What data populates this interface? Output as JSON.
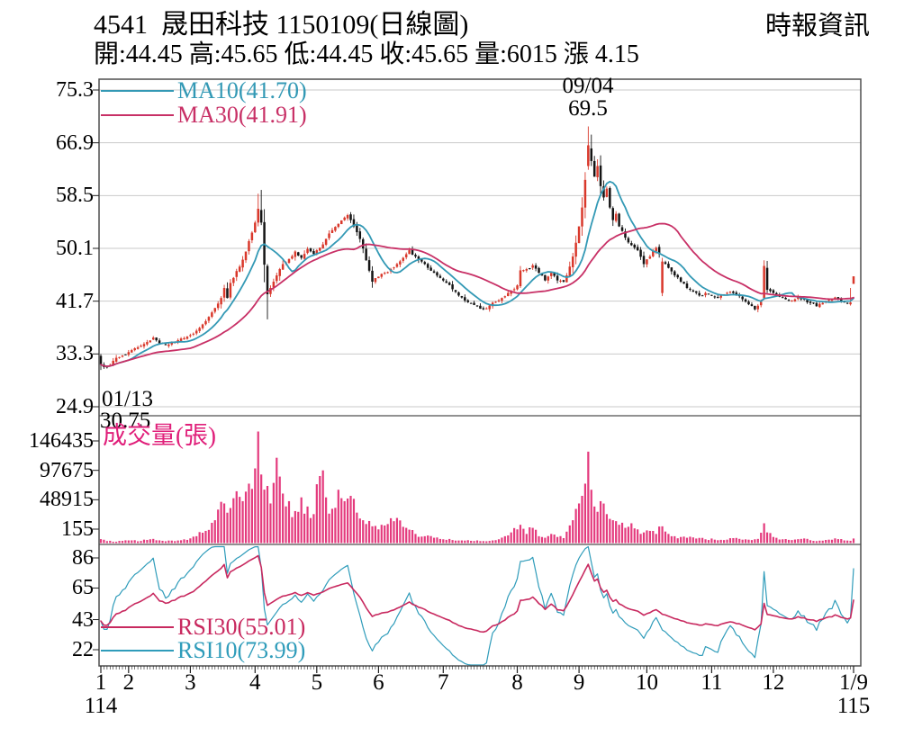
{
  "header": {
    "title": "4541  晟田科技 1150109(日線圖)",
    "source": "時報資訊",
    "quote_line": "開:44.45 高:45.65 低:44.45 收:45.65 量:6015 漲 4.15"
  },
  "colors": {
    "up_candle": "#d9382b",
    "down_candle": "#141414",
    "ma10": "#3399b5",
    "ma30": "#c83066",
    "volume_bar": "#e43a7d",
    "volume_label": "#e01f7a",
    "rsi10": "#2f9cba",
    "rsi30": "#c8295f",
    "grid": "#c9c9c9",
    "frame": "#4f4f4f",
    "axis": "#222222",
    "text": "#000000"
  },
  "chart_data": {
    "type": "candlestick",
    "title": "4541 晟田科技 1150109 日線圖",
    "price_panel": {
      "yticks": [
        "75.3",
        "66.9",
        "58.5",
        "50.1",
        "41.7",
        "33.3",
        "24.9"
      ],
      "ylim": [
        23.5,
        77.2
      ],
      "ma10": {
        "label": "MA10(41.70)",
        "period": 10,
        "last": 41.7
      },
      "ma30": {
        "label": "MA30(41.91)",
        "period": 30,
        "last": 41.91
      },
      "high_annotation": {
        "date": "09/04",
        "value": "69.5",
        "day": 158
      },
      "low_annotation": {
        "date": "01/13",
        "value": "30.75",
        "day": 0
      },
      "close_keypoints": [
        [
          0,
          31.6
        ],
        [
          2,
          31.2
        ],
        [
          4,
          32.2
        ],
        [
          6,
          32.8
        ],
        [
          8,
          33.2
        ],
        [
          9,
          33.6
        ],
        [
          11,
          34.2
        ],
        [
          13,
          34.6
        ],
        [
          15,
          35.2
        ],
        [
          17,
          35.9
        ],
        [
          19,
          35.0
        ],
        [
          21,
          34.7
        ],
        [
          23,
          35.1
        ],
        [
          25,
          35.5
        ],
        [
          27,
          35.8
        ],
        [
          29,
          36.3
        ],
        [
          31,
          37.0
        ],
        [
          33,
          38.0
        ],
        [
          35,
          39.2
        ],
        [
          37,
          40.6
        ],
        [
          39,
          42.2
        ],
        [
          40,
          43.8
        ],
        [
          41,
          42.2
        ],
        [
          42,
          44.6
        ],
        [
          43,
          45.4
        ],
        [
          45,
          47.2
        ],
        [
          47,
          49.6
        ],
        [
          49,
          52.6
        ],
        [
          50,
          54.2
        ],
        [
          51,
          56.4
        ],
        [
          52,
          54.2
        ],
        [
          53,
          47.5
        ],
        [
          54,
          42.8
        ],
        [
          55,
          43.8
        ],
        [
          56,
          44.8
        ],
        [
          57,
          45.8
        ],
        [
          58,
          46.8
        ],
        [
          59,
          47.6
        ],
        [
          61,
          48.4
        ],
        [
          63,
          49.6
        ],
        [
          65,
          48.6
        ],
        [
          67,
          50.0
        ],
        [
          69,
          49.2
        ],
        [
          71,
          50.2
        ],
        [
          73,
          51.6
        ],
        [
          75,
          53.0
        ],
        [
          77,
          54.0
        ],
        [
          79,
          55.0
        ],
        [
          80,
          55.4
        ],
        [
          81,
          54.6
        ],
        [
          82,
          53.6
        ],
        [
          84,
          51.6
        ],
        [
          86,
          48.2
        ],
        [
          88,
          44.8
        ],
        [
          90,
          45.6
        ],
        [
          92,
          46.2
        ],
        [
          94,
          46.8
        ],
        [
          96,
          47.6
        ],
        [
          98,
          48.6
        ],
        [
          100,
          49.8
        ],
        [
          102,
          48.8
        ],
        [
          104,
          48.0
        ],
        [
          106,
          47.0
        ],
        [
          108,
          46.2
        ],
        [
          110,
          45.4
        ],
        [
          112,
          44.6
        ],
        [
          114,
          43.6
        ],
        [
          116,
          42.6
        ],
        [
          118,
          41.8
        ],
        [
          120,
          41.4
        ],
        [
          122,
          40.9
        ],
        [
          124,
          40.4
        ],
        [
          126,
          41.0
        ],
        [
          128,
          41.6
        ],
        [
          130,
          42.2
        ],
        [
          132,
          43.0
        ],
        [
          134,
          43.6
        ],
        [
          135,
          44.2
        ],
        [
          136,
          46.6
        ],
        [
          138,
          46.8
        ],
        [
          140,
          47.4
        ],
        [
          142,
          46.2
        ],
        [
          144,
          45.0
        ],
        [
          146,
          46.2
        ],
        [
          148,
          45.0
        ],
        [
          150,
          44.8
        ],
        [
          151,
          45.8
        ],
        [
          152,
          47.2
        ],
        [
          153,
          48.8
        ],
        [
          154,
          51.0
        ],
        [
          155,
          53.6
        ],
        [
          156,
          56.6
        ],
        [
          157,
          61.0
        ],
        [
          158,
          66.5
        ],
        [
          159,
          64.0
        ],
        [
          160,
          61.5
        ],
        [
          161,
          63.2
        ],
        [
          162,
          60.0
        ],
        [
          163,
          58.2
        ],
        [
          164,
          59.6
        ],
        [
          165,
          56.6
        ],
        [
          166,
          54.6
        ],
        [
          167,
          55.6
        ],
        [
          168,
          53.6
        ],
        [
          170,
          51.8
        ],
        [
          172,
          50.6
        ],
        [
          174,
          49.8
        ],
        [
          176,
          47.6
        ],
        [
          178,
          48.8
        ],
        [
          180,
          50.2
        ],
        [
          181,
          49.2
        ],
        [
          182,
          48.0
        ],
        [
          184,
          47.0
        ],
        [
          186,
          45.8
        ],
        [
          188,
          44.8
        ],
        [
          190,
          43.8
        ],
        [
          192,
          43.2
        ],
        [
          194,
          42.6
        ],
        [
          196,
          43.0
        ],
        [
          198,
          42.6
        ],
        [
          200,
          42.2
        ],
        [
          202,
          42.8
        ],
        [
          204,
          43.2
        ],
        [
          206,
          42.6
        ],
        [
          208,
          42.0
        ],
        [
          210,
          41.2
        ],
        [
          212,
          40.4
        ],
        [
          214,
          41.6
        ],
        [
          215,
          47.3
        ],
        [
          216,
          43.5
        ],
        [
          218,
          43.0
        ],
        [
          220,
          42.4
        ],
        [
          222,
          42.0
        ],
        [
          224,
          41.8
        ],
        [
          226,
          42.4
        ],
        [
          228,
          42.0
        ],
        [
          230,
          41.4
        ],
        [
          232,
          40.9
        ],
        [
          234,
          41.4
        ],
        [
          236,
          41.9
        ],
        [
          238,
          42.3
        ],
        [
          240,
          41.7
        ],
        [
          242,
          41.3
        ],
        [
          243,
          41.5
        ],
        [
          244,
          45.65
        ]
      ],
      "override_days": [
        {
          "day": 0,
          "open": 33.0,
          "high": 33.3,
          "low": 30.75,
          "close": 31.6
        },
        {
          "day": 51,
          "open": 54.2,
          "high": 58.8,
          "low": 53.6,
          "close": 56.4
        },
        {
          "day": 52,
          "open": 56.2,
          "high": 59.4,
          "low": 53.8,
          "close": 54.2
        },
        {
          "day": 54,
          "open": 47.3,
          "high": 47.6,
          "low": 38.8,
          "close": 42.8
        },
        {
          "day": 158,
          "open": 63.2,
          "high": 69.5,
          "low": 62.6,
          "close": 66.5
        },
        {
          "day": 159,
          "open": 66.0,
          "high": 68.2,
          "low": 63.2,
          "close": 64.0
        },
        {
          "day": 182,
          "open": 43.0,
          "high": 48.6,
          "low": 42.5,
          "close": 48.0
        },
        {
          "day": 215,
          "open": 42.2,
          "high": 48.2,
          "low": 41.9,
          "close": 47.3
        },
        {
          "day": 216,
          "open": 47.0,
          "high": 48.1,
          "low": 43.0,
          "close": 43.5
        },
        {
          "day": 243,
          "open": 41.2,
          "high": 43.8,
          "low": 41.0,
          "close": 41.5
        },
        {
          "day": 244,
          "open": 44.45,
          "high": 45.65,
          "low": 44.45,
          "close": 45.65
        }
      ]
    },
    "volume_panel": {
      "label": "成交量(張)",
      "yticks": [
        "146435",
        "97675",
        "48915",
        "155"
      ],
      "last_volume": 6015,
      "volume_keypoints": [
        [
          0,
          5200
        ],
        [
          2,
          2600
        ],
        [
          5,
          1800
        ],
        [
          9,
          3500
        ],
        [
          13,
          2800
        ],
        [
          17,
          5500
        ],
        [
          20,
          3000
        ],
        [
          24,
          2600
        ],
        [
          28,
          4200
        ],
        [
          31,
          9000
        ],
        [
          34,
          16000
        ],
        [
          37,
          30000
        ],
        [
          40,
          52000
        ],
        [
          42,
          46000
        ],
        [
          44,
          68000
        ],
        [
          46,
          55000
        ],
        [
          48,
          78000
        ],
        [
          50,
          98000
        ],
        [
          51,
          146435
        ],
        [
          52,
          90000
        ],
        [
          54,
          75000
        ],
        [
          55,
          52000
        ],
        [
          57,
          112000
        ],
        [
          59,
          65000
        ],
        [
          61,
          55000
        ],
        [
          63,
          42000
        ],
        [
          65,
          60000
        ],
        [
          67,
          48000
        ],
        [
          69,
          38000
        ],
        [
          71,
          88000
        ],
        [
          73,
          60000
        ],
        [
          75,
          45000
        ],
        [
          77,
          70000
        ],
        [
          79,
          55000
        ],
        [
          81,
          62000
        ],
        [
          83,
          40000
        ],
        [
          85,
          30000
        ],
        [
          88,
          22000
        ],
        [
          90,
          18000
        ],
        [
          93,
          25000
        ],
        [
          96,
          33000
        ],
        [
          99,
          20000
        ],
        [
          102,
          12000
        ],
        [
          105,
          9000
        ],
        [
          108,
          7000
        ],
        [
          111,
          5000
        ],
        [
          114,
          4000
        ],
        [
          117,
          3500
        ],
        [
          120,
          3000
        ],
        [
          123,
          2600
        ],
        [
          125,
          2400
        ],
        [
          127,
          3500
        ],
        [
          129,
          5000
        ],
        [
          131,
          9000
        ],
        [
          133,
          14000
        ],
        [
          135,
          18000
        ],
        [
          136,
          24000
        ],
        [
          138,
          12000
        ],
        [
          140,
          20000
        ],
        [
          142,
          9000
        ],
        [
          144,
          7000
        ],
        [
          146,
          12000
        ],
        [
          148,
          8000
        ],
        [
          150,
          6500
        ],
        [
          151,
          15000
        ],
        [
          153,
          30000
        ],
        [
          155,
          52000
        ],
        [
          156,
          62000
        ],
        [
          157,
          78000
        ],
        [
          158,
          120000
        ],
        [
          159,
          70000
        ],
        [
          160,
          48000
        ],
        [
          162,
          55000
        ],
        [
          164,
          38000
        ],
        [
          166,
          30000
        ],
        [
          168,
          24000
        ],
        [
          170,
          20000
        ],
        [
          172,
          26000
        ],
        [
          174,
          18000
        ],
        [
          176,
          14000
        ],
        [
          178,
          16000
        ],
        [
          180,
          12000
        ],
        [
          182,
          22000
        ],
        [
          184,
          12000
        ],
        [
          186,
          9000
        ],
        [
          188,
          8000
        ],
        [
          190,
          7000
        ],
        [
          193,
          6000
        ],
        [
          196,
          5000
        ],
        [
          199,
          4500
        ],
        [
          202,
          4000
        ],
        [
          205,
          6500
        ],
        [
          208,
          4500
        ],
        [
          211,
          4000
        ],
        [
          213,
          5500
        ],
        [
          215,
          26000
        ],
        [
          216,
          14000
        ],
        [
          218,
          8000
        ],
        [
          221,
          5000
        ],
        [
          224,
          4000
        ],
        [
          227,
          5500
        ],
        [
          230,
          3800
        ],
        [
          233,
          3200
        ],
        [
          236,
          4500
        ],
        [
          239,
          5200
        ],
        [
          241,
          3500
        ],
        [
          243,
          3000
        ],
        [
          244,
          6015
        ]
      ]
    },
    "rsi_panel": {
      "yticks": [
        "86",
        "65",
        "43",
        "22"
      ],
      "rsi30": {
        "label": "RSI30(55.01)",
        "period": 30,
        "last": 55.01
      },
      "rsi10": {
        "label": "RSI10(73.99)",
        "period": 10,
        "last": 73.99
      }
    },
    "x_axis": {
      "month_labels": [
        "1",
        "2",
        "3",
        "4",
        "5",
        "6",
        "7",
        "8",
        "9",
        "10",
        "11",
        "12",
        "1/9"
      ],
      "month_start_days": [
        0,
        9,
        29,
        50,
        70,
        90,
        111,
        135,
        155,
        177,
        198,
        218,
        244
      ],
      "year_left": "114",
      "year_right": "115",
      "total_days": 245
    }
  }
}
